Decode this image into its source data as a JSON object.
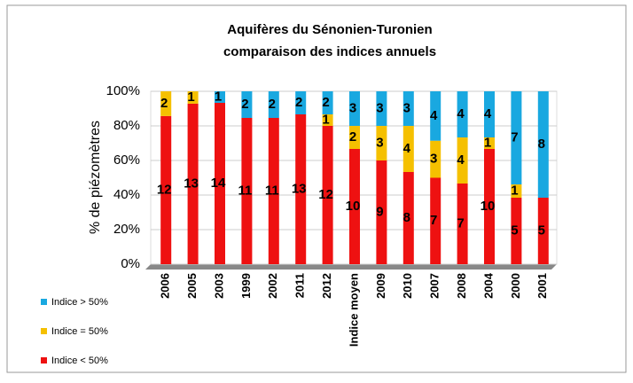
{
  "chart_data": {
    "type": "bar",
    "stack": "percent",
    "title": [
      "Aquifères du Sénonien-Turonien",
      "comparaison des indices annuels"
    ],
    "y_label": "% de piézomètres",
    "categories": [
      "2006",
      "2005",
      "2003",
      "1999",
      "2002",
      "2011",
      "2012",
      "Indice moyen",
      "2009",
      "2010",
      "2007",
      "2008",
      "2004",
      "2000",
      "2001"
    ],
    "series": [
      {
        "name": "Indice < 50%",
        "color": "#ee1111",
        "values": [
          12,
          13,
          14,
          11,
          11,
          13,
          12,
          10,
          9,
          8,
          7,
          7,
          10,
          5,
          5
        ]
      },
      {
        "name": "Indice = 50%",
        "color": "#f5c000",
        "values": [
          2,
          1,
          0,
          0,
          0,
          0,
          1,
          2,
          3,
          4,
          3,
          4,
          1,
          1,
          0
        ]
      },
      {
        "name": "Indice > 50%",
        "color": "#19a8e0",
        "values": [
          0,
          0,
          1,
          2,
          2,
          2,
          2,
          3,
          3,
          3,
          4,
          4,
          4,
          7,
          8
        ]
      }
    ],
    "ylim": [
      0,
      100
    ],
    "yticks": [
      {
        "value": 0,
        "label": "0%"
      },
      {
        "value": 20,
        "label": "20%"
      },
      {
        "value": 40,
        "label": "40%"
      },
      {
        "value": 60,
        "label": "60%"
      },
      {
        "value": 80,
        "label": "80%"
      },
      {
        "value": 100,
        "label": "100%"
      }
    ],
    "grid": true,
    "legend": "bottom-left"
  }
}
